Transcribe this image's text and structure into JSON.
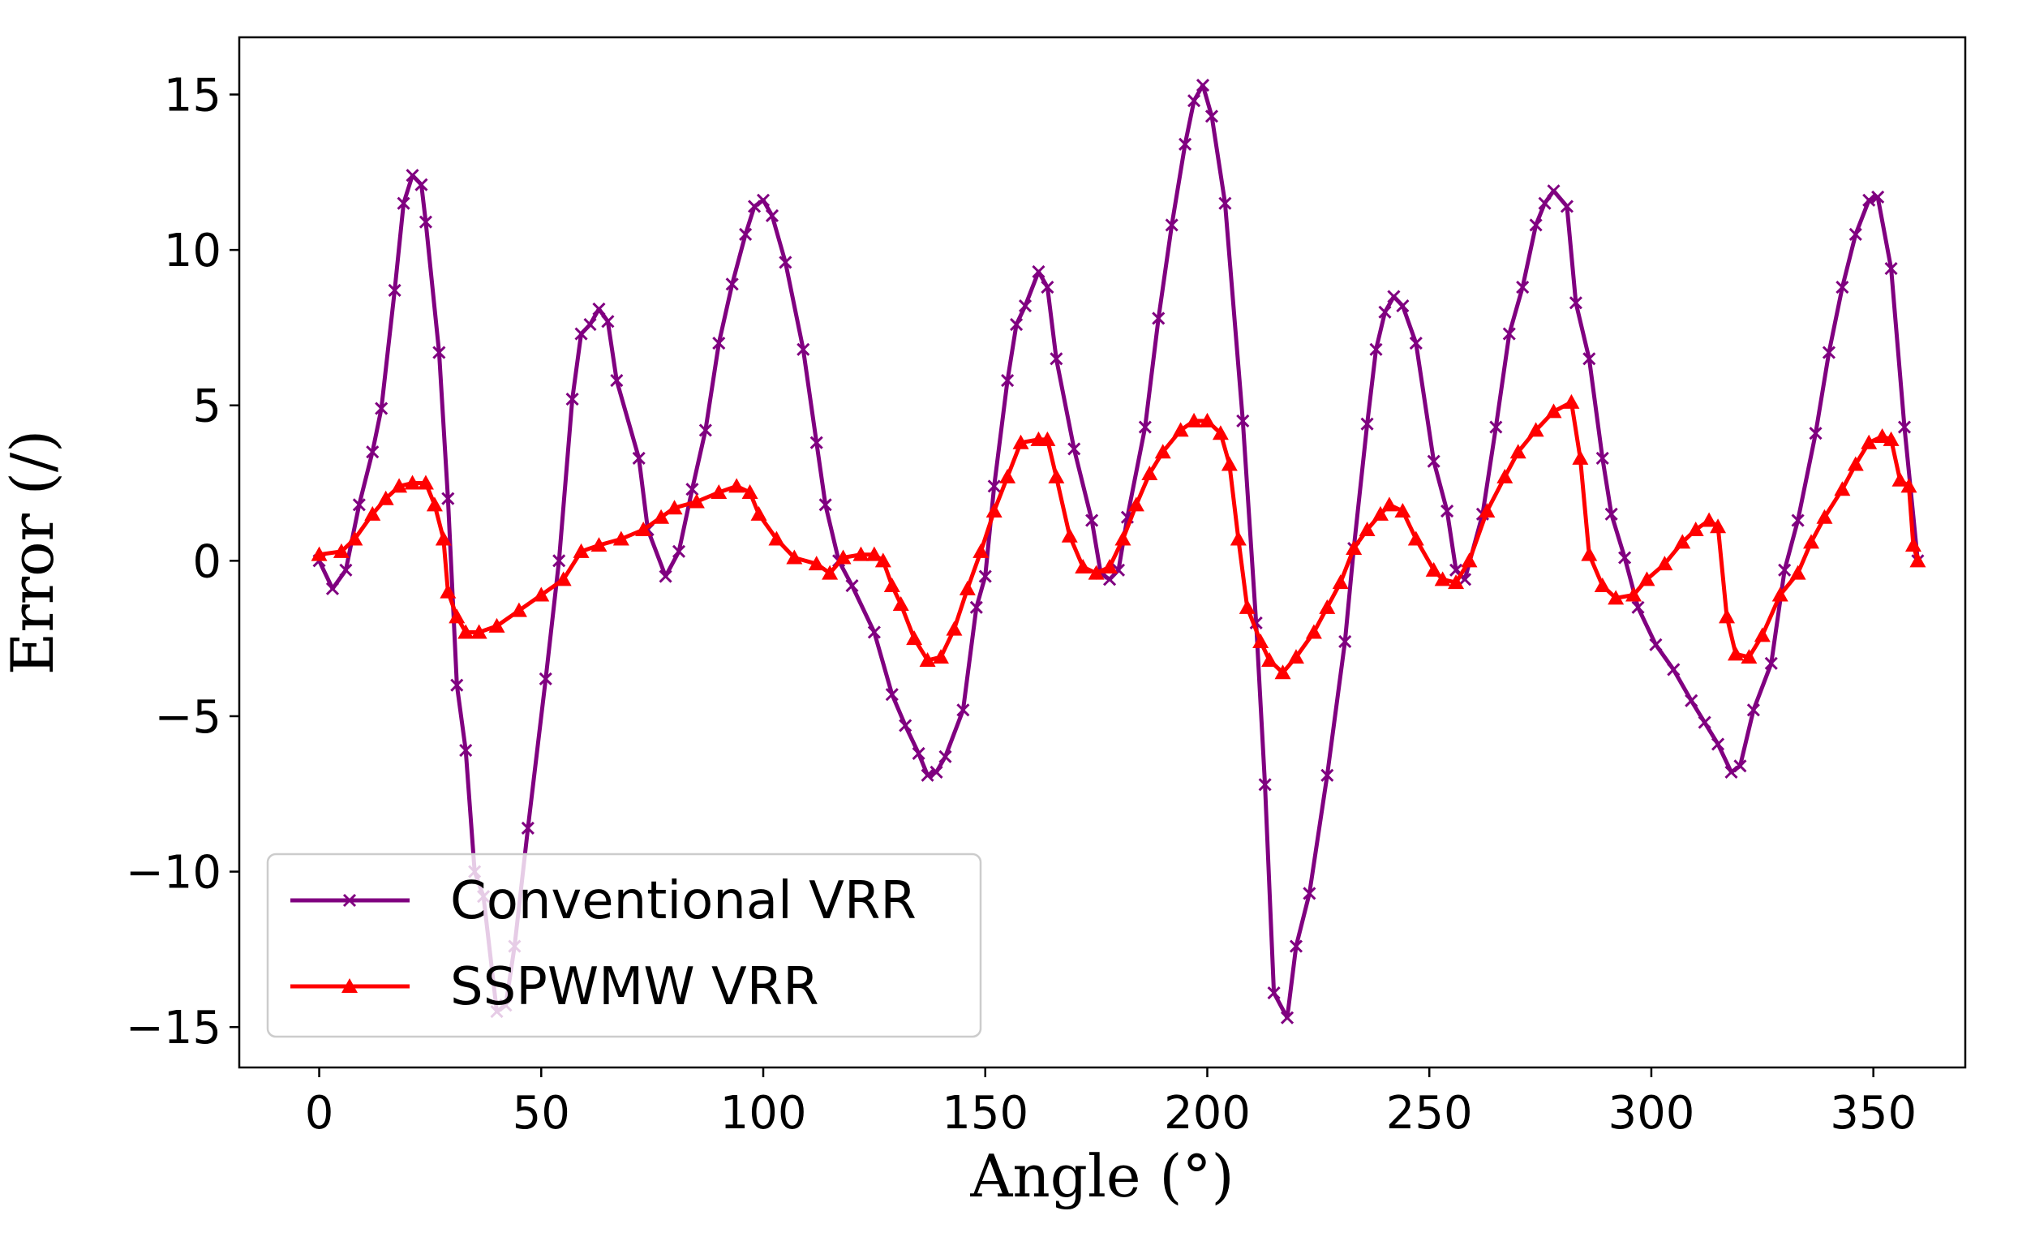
{
  "chart_data": {
    "type": "line",
    "title": "",
    "xlabel": "Angle (°)",
    "ylabel": "Error (/)",
    "xlim": [
      -18,
      370.7
    ],
    "ylim": [
      -16.3,
      16.84
    ],
    "xticks": [
      0,
      50,
      100,
      150,
      200,
      250,
      300,
      350
    ],
    "yticks": [
      -15,
      -10,
      -5,
      0,
      5,
      10,
      15
    ],
    "xtick_labels": [
      "0",
      "50",
      "100",
      "150",
      "200",
      "250",
      "300",
      "350"
    ],
    "ytick_labels": [
      "−15",
      "−10",
      "−5",
      "0",
      "5",
      "10",
      "15"
    ],
    "grid": false,
    "legend_placement": "lower-left",
    "series": [
      {
        "name": "Conventional VRR",
        "color": "#800080",
        "marker": "x",
        "x": [
          0,
          3,
          6,
          9,
          12,
          14,
          17,
          19,
          21,
          23,
          24,
          27,
          29,
          31,
          33,
          35,
          37,
          40,
          42,
          44,
          47,
          51,
          54,
          57,
          59,
          61,
          63,
          65,
          67,
          72,
          74,
          78,
          81,
          84,
          87,
          90,
          93,
          96,
          98,
          100,
          102,
          105,
          109,
          112,
          114,
          117,
          120,
          125,
          129,
          132,
          135,
          137,
          139,
          141,
          145,
          148,
          150,
          152,
          155,
          157,
          159,
          162,
          164,
          166,
          170,
          174,
          176,
          178,
          180,
          182,
          186,
          189,
          192,
          195,
          197,
          199,
          201,
          204,
          208,
          211,
          213,
          215,
          218,
          220,
          223,
          227,
          231,
          233,
          236,
          238,
          240,
          242,
          244,
          247,
          251,
          254,
          256,
          258,
          262,
          265,
          268,
          271,
          274,
          276,
          278,
          281,
          283,
          286,
          289,
          291,
          294,
          297,
          301,
          305,
          309,
          312,
          315,
          318,
          320,
          323,
          327,
          330,
          333,
          337,
          340,
          343,
          346,
          349,
          351,
          354,
          357,
          360
        ],
        "y": [
          0,
          -0.9,
          -0.3,
          1.8,
          3.5,
          4.9,
          8.7,
          11.5,
          12.4,
          12.1,
          10.9,
          6.7,
          2,
          -4,
          -6.1,
          -10,
          -10.8,
          -14.5,
          -14.3,
          -12.4,
          -8.6,
          -3.8,
          0,
          5.2,
          7.3,
          7.6,
          8.1,
          7.7,
          5.8,
          3.3,
          1,
          -0.5,
          0.3,
          2.3,
          4.2,
          7,
          8.9,
          10.5,
          11.4,
          11.6,
          11.1,
          9.6,
          6.8,
          3.8,
          1.8,
          0,
          -0.8,
          -2.3,
          -4.3,
          -5.3,
          -6.2,
          -6.9,
          -6.8,
          -6.3,
          -4.8,
          -1.5,
          -0.5,
          2.4,
          5.8,
          7.6,
          8.2,
          9.3,
          8.8,
          6.5,
          3.6,
          1.3,
          -0.4,
          -0.6,
          -0.3,
          1.4,
          4.3,
          7.8,
          10.8,
          13.4,
          14.8,
          15.3,
          14.3,
          11.5,
          4.5,
          -2,
          -7.2,
          -13.9,
          -14.7,
          -12.4,
          -10.7,
          -6.9,
          -2.6,
          0.4,
          4.4,
          6.8,
          8,
          8.5,
          8.2,
          7,
          3.2,
          1.6,
          -0.3,
          -0.6,
          1.5,
          4.3,
          7.3,
          8.8,
          10.8,
          11.5,
          11.9,
          11.4,
          8.3,
          6.5,
          3.3,
          1.5,
          0.1,
          -1.5,
          -2.7,
          -3.5,
          -4.5,
          -5.2,
          -5.9,
          -6.8,
          -6.6,
          -4.8,
          -3.3,
          -0.3,
          1.3,
          4.1,
          6.7,
          8.8,
          10.5,
          11.6,
          11.7,
          9.4,
          4.3,
          0
        ]
      },
      {
        "name": "SSPWMW VRR",
        "color": "#ff0000",
        "marker": "^",
        "x": [
          0,
          5,
          8,
          12,
          15,
          18,
          21,
          24,
          26,
          28,
          29,
          31,
          33,
          36,
          40,
          45,
          50,
          55,
          59,
          63,
          68,
          73,
          77,
          80,
          85,
          90,
          94,
          97,
          99,
          103,
          107,
          112,
          115,
          118,
          122,
          125,
          127,
          129,
          131,
          134,
          137,
          140,
          143,
          146,
          149,
          152,
          155,
          158,
          162,
          164,
          166,
          169,
          172,
          175,
          178,
          181,
          184,
          187,
          190,
          194,
          197,
          200,
          203,
          205,
          207,
          209,
          212,
          214,
          217,
          220,
          224,
          227,
          230,
          233,
          236,
          239,
          241,
          244,
          247,
          251,
          253,
          256,
          259,
          263,
          267,
          270,
          274,
          278,
          282,
          284,
          286,
          289,
          292,
          296,
          299,
          303,
          307,
          310,
          313,
          315,
          317,
          319,
          322,
          325,
          329,
          333,
          336,
          339,
          343,
          346,
          349,
          352,
          354,
          356,
          358,
          359,
          360
        ],
        "y": [
          0.2,
          0.3,
          0.7,
          1.5,
          2,
          2.4,
          2.5,
          2.5,
          1.8,
          0.7,
          -1,
          -1.8,
          -2.3,
          -2.3,
          -2.1,
          -1.6,
          -1.1,
          -0.6,
          0.3,
          0.5,
          0.7,
          1.0,
          1.4,
          1.7,
          1.9,
          2.2,
          2.4,
          2.2,
          1.5,
          0.7,
          0.1,
          -0.1,
          -0.4,
          0.1,
          0.2,
          0.2,
          0,
          -0.8,
          -1.4,
          -2.5,
          -3.2,
          -3.1,
          -2.2,
          -0.9,
          0.3,
          1.6,
          2.7,
          3.8,
          3.9,
          3.9,
          2.7,
          0.8,
          -0.2,
          -0.4,
          -0.2,
          0.7,
          1.8,
          2.8,
          3.5,
          4.2,
          4.5,
          4.5,
          4.1,
          3.1,
          0.7,
          -1.5,
          -2.6,
          -3.2,
          -3.6,
          -3.1,
          -2.3,
          -1.5,
          -0.7,
          0.4,
          1,
          1.5,
          1.8,
          1.6,
          0.7,
          -0.3,
          -0.6,
          -0.7,
          0,
          1.6,
          2.7,
          3.5,
          4.2,
          4.8,
          5.1,
          3.3,
          0.2,
          -0.8,
          -1.2,
          -1.1,
          -0.6,
          -0.1,
          0.6,
          1.0,
          1.3,
          1.1,
          -1.8,
          -3,
          -3.1,
          -2.4,
          -1.1,
          -0.4,
          0.6,
          1.4,
          2.3,
          3.1,
          3.8,
          4.0,
          3.9,
          2.6,
          2.4,
          0.5,
          0
        ]
      }
    ]
  }
}
